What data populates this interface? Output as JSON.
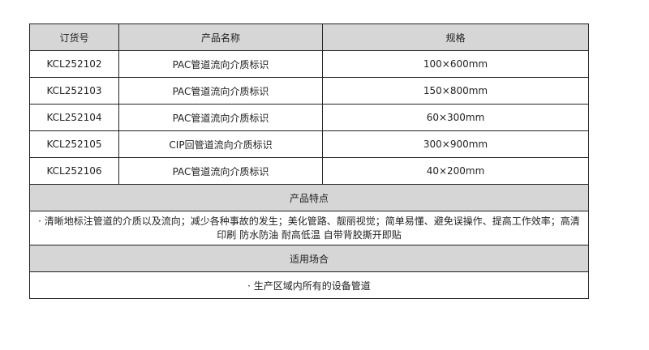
{
  "headers": {
    "order_no": "订货号",
    "product_name": "产品名称",
    "spec": "规格"
  },
  "rows": [
    {
      "order_no": "KCL252102",
      "product_name": "PAC管道流向介质标识",
      "spec": "100×600mm"
    },
    {
      "order_no": "KCL252103",
      "product_name": "PAC管道流向介质标识",
      "spec": "150×800mm"
    },
    {
      "order_no": "KCL252104",
      "product_name": "PAC管道流向介质标识",
      "spec": "60×300mm"
    },
    {
      "order_no": "KCL252105",
      "product_name": "CIP回管道流向介质标识",
      "spec": "300×900mm"
    },
    {
      "order_no": "KCL252106",
      "product_name": "PAC管道流向介质标识",
      "spec": "40×200mm"
    }
  ],
  "features": {
    "title": "产品特点",
    "text": "· 清晰地标注管道的介质以及流向；减少各种事故的发生；美化管路、靓丽视觉；简单易懂、避免误操作、提高工作效率；高清印刷 防水防油 耐高低温 自带背胶撕开即贴"
  },
  "usage": {
    "title": "适用场合",
    "text": "· 生产区域内所有的设备管道"
  }
}
